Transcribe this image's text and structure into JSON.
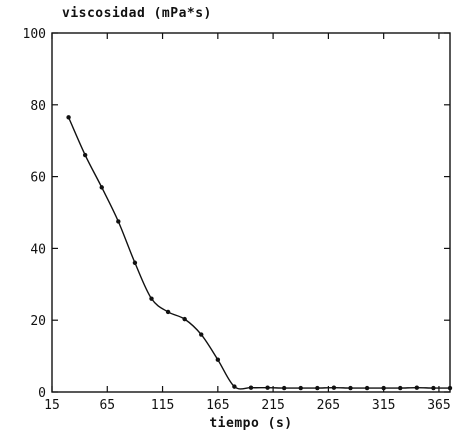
{
  "chart_data": {
    "type": "line",
    "xlabel": "tiempo (s)",
    "ylabel": "viscosidad (mPa*s)",
    "xlim": [
      15,
      375
    ],
    "ylim": [
      0,
      100
    ],
    "x_ticks": [
      15,
      65,
      115,
      165,
      215,
      265,
      315,
      365
    ],
    "x_tick_labels": [
      "15",
      "65",
      "115",
      "165",
      "215",
      "265",
      "315",
      "365"
    ],
    "y_ticks": [
      0,
      20,
      40,
      60,
      80,
      100
    ],
    "y_tick_labels": [
      "0",
      "20",
      "40",
      "60",
      "80",
      "100"
    ],
    "grid": false,
    "legend": false,
    "series": [
      {
        "color": "#111111",
        "x": [
          30,
          45,
          60,
          75,
          90,
          105,
          120,
          135,
          150,
          165,
          180,
          195,
          210,
          225,
          240,
          255,
          270,
          285,
          300,
          315,
          330,
          345,
          360,
          375
        ],
        "y": [
          76.5,
          66,
          57,
          47.5,
          36,
          26,
          22.3,
          20.3,
          16,
          9,
          1.5,
          1.2,
          1.2,
          1.1,
          1.1,
          1.1,
          1.2,
          1.1,
          1.1,
          1.1,
          1.1,
          1.2,
          1.1,
          1.1
        ]
      }
    ]
  }
}
